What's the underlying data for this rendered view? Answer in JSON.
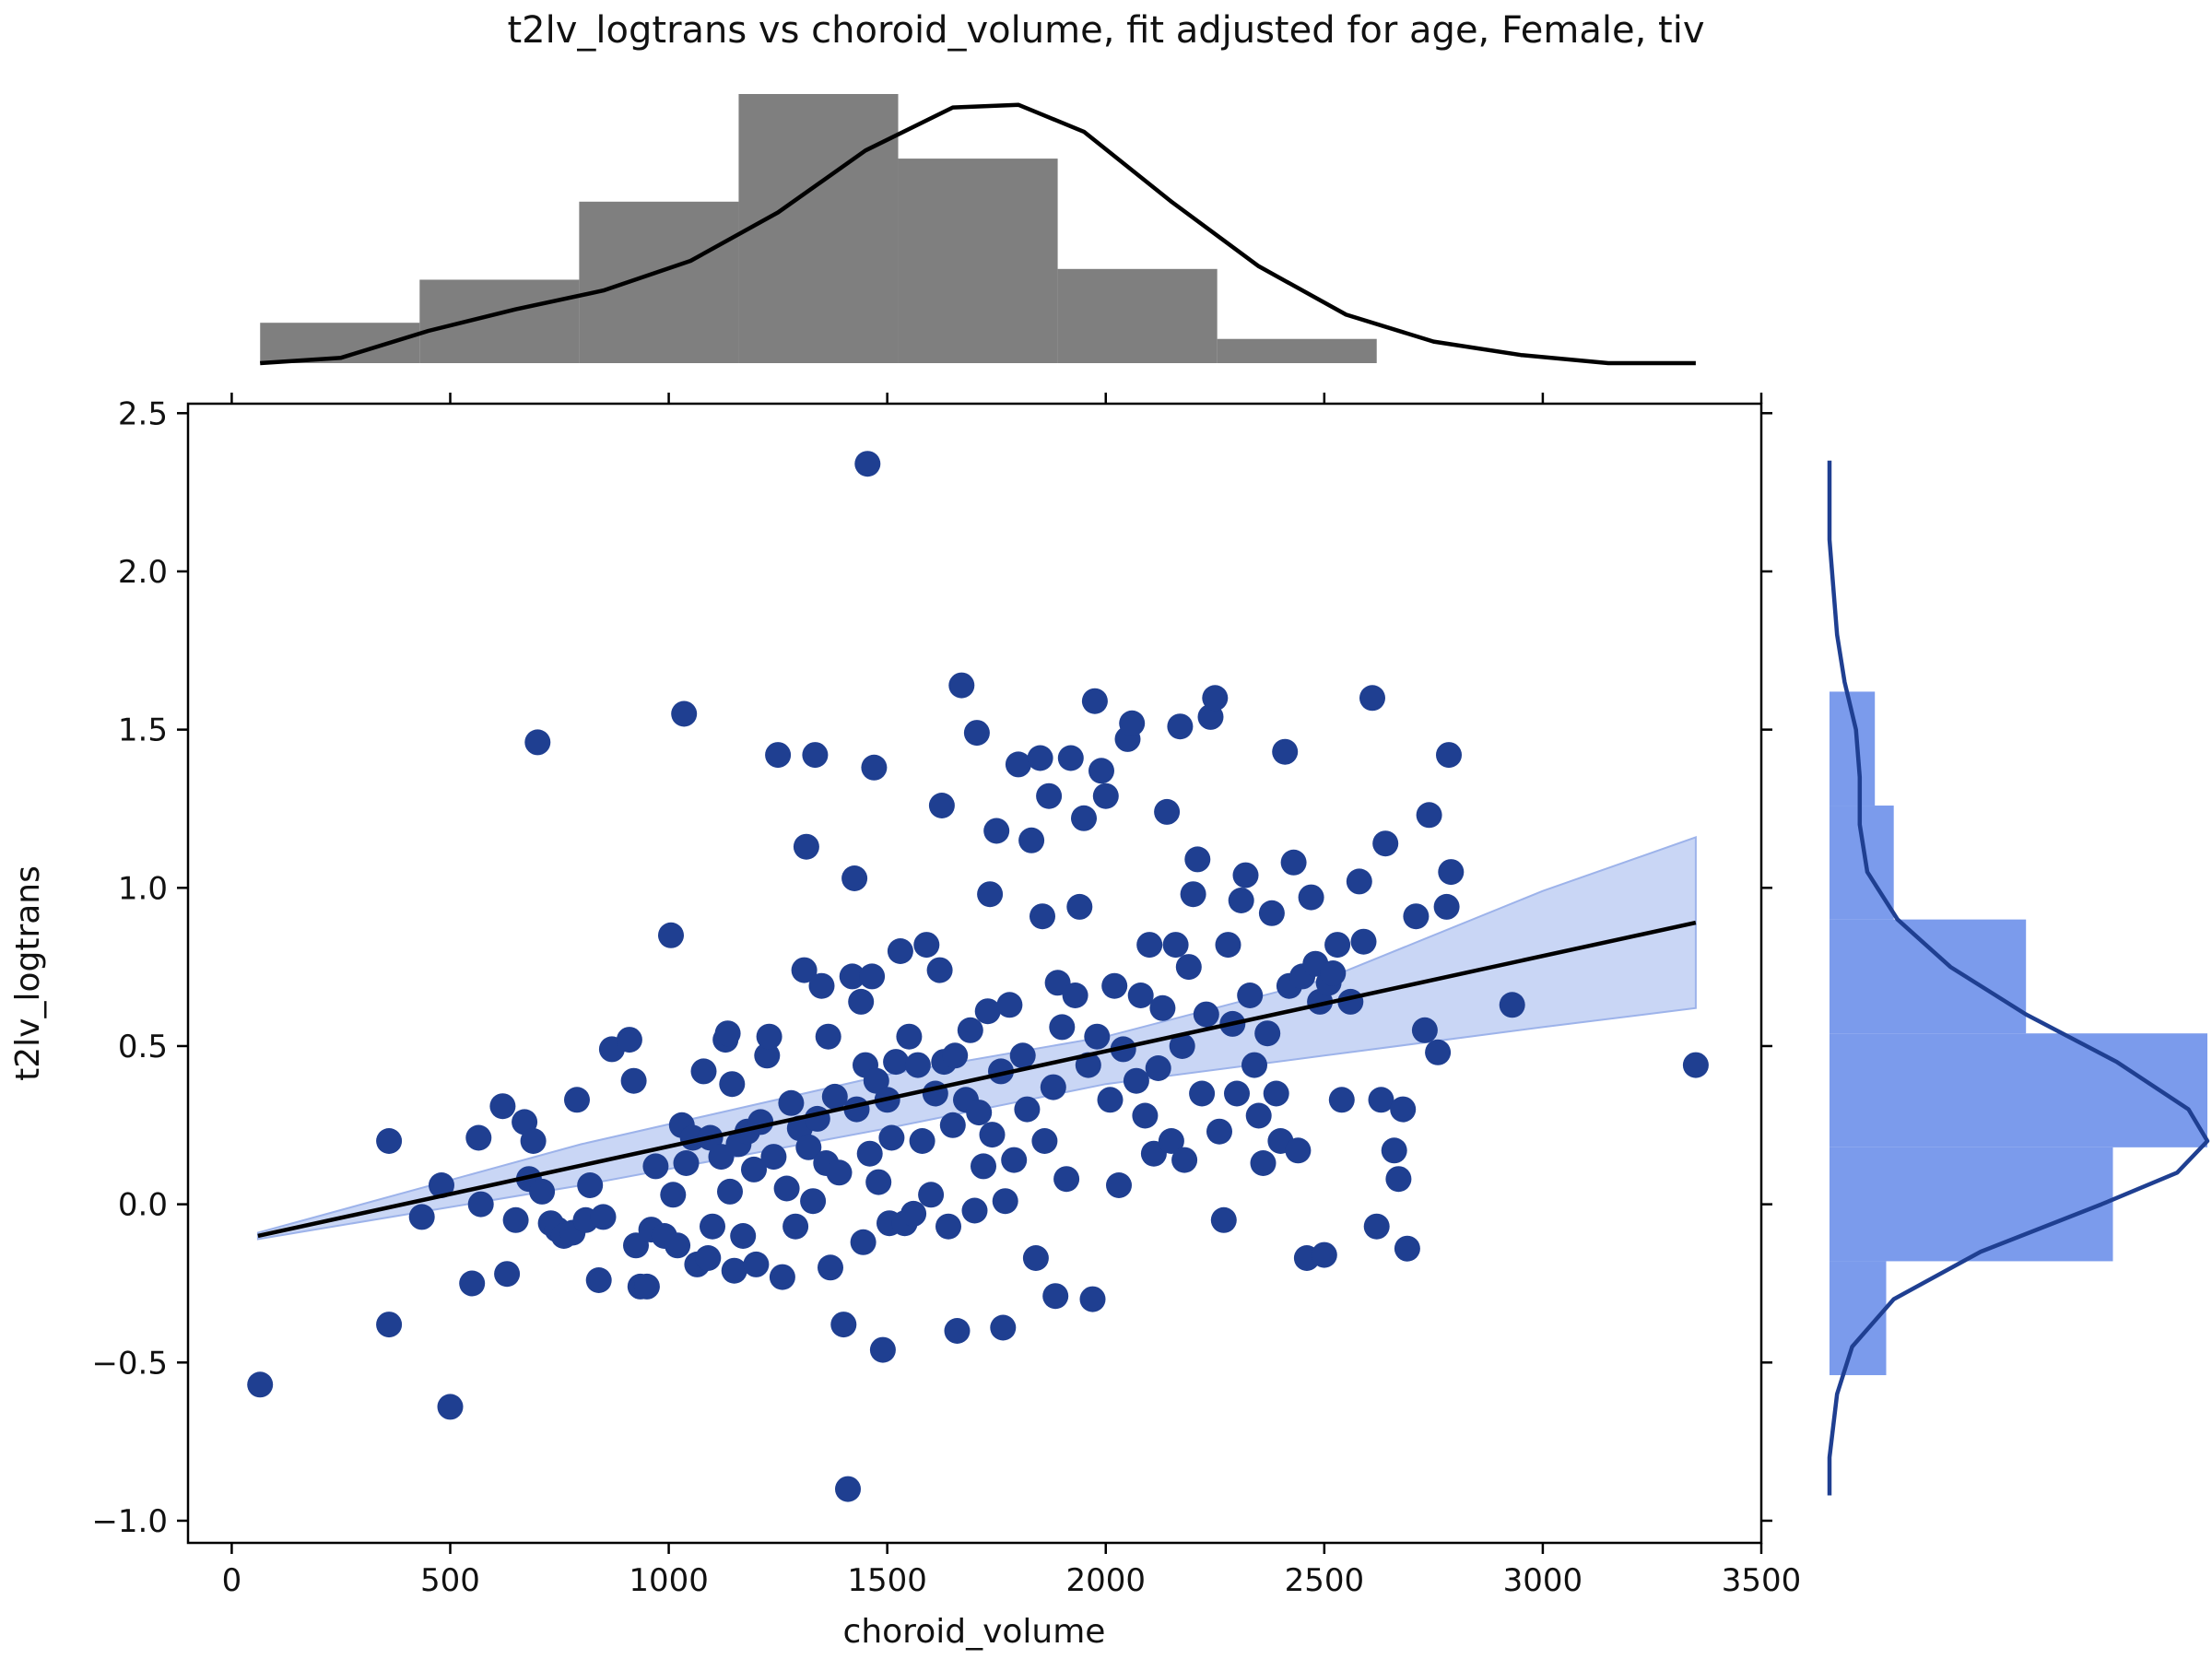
{
  "chart_data": {
    "type": "scatter",
    "title": "t2lv_logtrans vs choroid_volume, fit adjusted for age, Female, tiv",
    "xlabel": "choroid_volume",
    "ylabel": "t2lv_logtrans",
    "xlim": [
      -100,
      3500
    ],
    "ylim": [
      -1.07,
      2.53
    ],
    "xticks": [
      0,
      500,
      1000,
      1500,
      2000,
      2500,
      3000,
      3500
    ],
    "yticks": [
      -1.0,
      -0.5,
      0.0,
      0.5,
      1.0,
      1.5,
      2.0,
      2.5
    ],
    "xtick_labels": [
      "0",
      "500",
      "1000",
      "1500",
      "2000",
      "2500",
      "3000",
      "3500"
    ],
    "ytick_labels": [
      "−1.0",
      "−0.5",
      "0.0",
      "0.5",
      "1.0",
      "1.5",
      "2.0",
      "2.5"
    ],
    "grid": false,
    "colors": {
      "points": "#1f3f91",
      "fit_line": "#000000",
      "ci_band": "#c9d6f5",
      "ci_edge": "#9db3ea",
      "top_hist": "#7f7f7f",
      "top_kde": "#000000",
      "right_hist": "#7b9bec",
      "right_kde": "#1f3f91"
    },
    "fit_line": {
      "x": [
        60,
        3350
      ],
      "y": [
        -0.1,
        0.89
      ]
    },
    "ci_band": {
      "x": [
        60,
        800,
        1500,
        2000,
        2500,
        3000,
        3350
      ],
      "lower": [
        -0.11,
        0.06,
        0.24,
        0.38,
        0.47,
        0.56,
        0.62
      ],
      "upper": [
        -0.09,
        0.19,
        0.41,
        0.53,
        0.71,
        0.99,
        1.16
      ]
    },
    "points": [
      [
        65,
        -0.57
      ],
      [
        360,
        0.2
      ],
      [
        360,
        -0.38
      ],
      [
        435,
        -0.04
      ],
      [
        480,
        0.06
      ],
      [
        500,
        -0.64
      ],
      [
        550,
        -0.25
      ],
      [
        565,
        0.21
      ],
      [
        570,
        0.0
      ],
      [
        620,
        0.31
      ],
      [
        630,
        -0.22
      ],
      [
        650,
        -0.05
      ],
      [
        670,
        0.26
      ],
      [
        680,
        0.08
      ],
      [
        690,
        0.2
      ],
      [
        700,
        1.46
      ],
      [
        710,
        0.04
      ],
      [
        730,
        -0.06
      ],
      [
        745,
        -0.08
      ],
      [
        760,
        -0.1
      ],
      [
        780,
        -0.09
      ],
      [
        790,
        0.33
      ],
      [
        810,
        -0.05
      ],
      [
        820,
        0.06
      ],
      [
        840,
        -0.24
      ],
      [
        850,
        -0.04
      ],
      [
        870,
        0.49
      ],
      [
        910,
        0.52
      ],
      [
        920,
        0.39
      ],
      [
        925,
        -0.13
      ],
      [
        935,
        -0.26
      ],
      [
        950,
        -0.26
      ],
      [
        960,
        -0.08
      ],
      [
        970,
        0.12
      ],
      [
        990,
        -0.1
      ],
      [
        1005,
        0.85
      ],
      [
        1010,
        0.03
      ],
      [
        1020,
        -0.13
      ],
      [
        1030,
        0.25
      ],
      [
        1035,
        1.55
      ],
      [
        1040,
        0.13
      ],
      [
        1055,
        0.21
      ],
      [
        1065,
        -0.19
      ],
      [
        1080,
        0.42
      ],
      [
        1090,
        -0.17
      ],
      [
        1095,
        0.21
      ],
      [
        1100,
        -0.07
      ],
      [
        1120,
        0.15
      ],
      [
        1130,
        0.52
      ],
      [
        1135,
        0.54
      ],
      [
        1140,
        0.04
      ],
      [
        1145,
        0.38
      ],
      [
        1150,
        -0.21
      ],
      [
        1160,
        0.19
      ],
      [
        1170,
        -0.1
      ],
      [
        1180,
        0.23
      ],
      [
        1195,
        0.11
      ],
      [
        1200,
        -0.19
      ],
      [
        1210,
        0.26
      ],
      [
        1225,
        0.47
      ],
      [
        1230,
        0.53
      ],
      [
        1240,
        0.15
      ],
      [
        1250,
        1.42
      ],
      [
        1260,
        -0.23
      ],
      [
        1270,
        0.05
      ],
      [
        1280,
        0.32
      ],
      [
        1290,
        -0.07
      ],
      [
        1300,
        0.24
      ],
      [
        1310,
        0.74
      ],
      [
        1315,
        1.13
      ],
      [
        1320,
        0.18
      ],
      [
        1330,
        0.01
      ],
      [
        1335,
        1.42
      ],
      [
        1340,
        0.27
      ],
      [
        1350,
        0.69
      ],
      [
        1360,
        0.13
      ],
      [
        1365,
        0.53
      ],
      [
        1370,
        -0.2
      ],
      [
        1380,
        0.34
      ],
      [
        1390,
        0.1
      ],
      [
        1400,
        -0.38
      ],
      [
        1410,
        -0.9
      ],
      [
        1420,
        0.72
      ],
      [
        1425,
        1.03
      ],
      [
        1430,
        0.3
      ],
      [
        1440,
        0.64
      ],
      [
        1445,
        -0.12
      ],
      [
        1450,
        0.44
      ],
      [
        1455,
        2.34
      ],
      [
        1460,
        0.16
      ],
      [
        1465,
        0.72
      ],
      [
        1470,
        1.38
      ],
      [
        1475,
        0.39
      ],
      [
        1480,
        0.07
      ],
      [
        1490,
        -0.46
      ],
      [
        1500,
        0.33
      ],
      [
        1505,
        -0.06
      ],
      [
        1510,
        0.21
      ],
      [
        1520,
        0.45
      ],
      [
        1530,
        0.8
      ],
      [
        1540,
        -0.06
      ],
      [
        1550,
        0.53
      ],
      [
        1560,
        -0.03
      ],
      [
        1570,
        0.44
      ],
      [
        1580,
        0.2
      ],
      [
        1590,
        0.82
      ],
      [
        1600,
        0.03
      ],
      [
        1610,
        0.35
      ],
      [
        1620,
        0.74
      ],
      [
        1625,
        1.26
      ],
      [
        1630,
        0.45
      ],
      [
        1640,
        -0.07
      ],
      [
        1650,
        0.25
      ],
      [
        1655,
        0.47
      ],
      [
        1660,
        -0.4
      ],
      [
        1670,
        1.64
      ],
      [
        1680,
        0.33
      ],
      [
        1690,
        0.55
      ],
      [
        1700,
        -0.02
      ],
      [
        1705,
        1.49
      ],
      [
        1710,
        0.29
      ],
      [
        1720,
        0.12
      ],
      [
        1730,
        0.61
      ],
      [
        1735,
        0.98
      ],
      [
        1740,
        0.22
      ],
      [
        1750,
        1.18
      ],
      [
        1760,
        0.42
      ],
      [
        1765,
        -0.39
      ],
      [
        1770,
        0.01
      ],
      [
        1780,
        0.63
      ],
      [
        1790,
        0.14
      ],
      [
        1800,
        1.39
      ],
      [
        1810,
        0.47
      ],
      [
        1820,
        0.3
      ],
      [
        1830,
        1.15
      ],
      [
        1840,
        -0.17
      ],
      [
        1850,
        1.41
      ],
      [
        1855,
        0.91
      ],
      [
        1860,
        0.2
      ],
      [
        1870,
        1.29
      ],
      [
        1880,
        0.37
      ],
      [
        1885,
        -0.29
      ],
      [
        1890,
        0.7
      ],
      [
        1900,
        0.56
      ],
      [
        1910,
        0.08
      ],
      [
        1920,
        1.41
      ],
      [
        1930,
        0.66
      ],
      [
        1940,
        0.94
      ],
      [
        1950,
        1.22
      ],
      [
        1960,
        0.44
      ],
      [
        1970,
        -0.3
      ],
      [
        1975,
        1.59
      ],
      [
        1980,
        0.53
      ],
      [
        1990,
        1.37
      ],
      [
        2000,
        1.29
      ],
      [
        2010,
        0.33
      ],
      [
        2020,
        0.69
      ],
      [
        2030,
        0.06
      ],
      [
        2040,
        0.49
      ],
      [
        2050,
        1.47
      ],
      [
        2060,
        1.52
      ],
      [
        2070,
        0.39
      ],
      [
        2080,
        0.66
      ],
      [
        2090,
        0.28
      ],
      [
        2100,
        0.82
      ],
      [
        2110,
        0.16
      ],
      [
        2120,
        0.43
      ],
      [
        2130,
        0.62
      ],
      [
        2140,
        1.24
      ],
      [
        2150,
        0.2
      ],
      [
        2160,
        0.82
      ],
      [
        2170,
        1.51
      ],
      [
        2175,
        0.5
      ],
      [
        2180,
        0.14
      ],
      [
        2190,
        0.75
      ],
      [
        2200,
        0.98
      ],
      [
        2210,
        1.09
      ],
      [
        2220,
        0.35
      ],
      [
        2230,
        0.6
      ],
      [
        2240,
        1.54
      ],
      [
        2250,
        1.6
      ],
      [
        2260,
        0.23
      ],
      [
        2270,
        -0.05
      ],
      [
        2280,
        0.82
      ],
      [
        2290,
        0.57
      ],
      [
        2300,
        0.35
      ],
      [
        2310,
        0.96
      ],
      [
        2320,
        1.04
      ],
      [
        2330,
        0.66
      ],
      [
        2340,
        0.44
      ],
      [
        2350,
        0.28
      ],
      [
        2360,
        0.13
      ],
      [
        2370,
        0.54
      ],
      [
        2380,
        0.92
      ],
      [
        2390,
        0.35
      ],
      [
        2400,
        0.2
      ],
      [
        2410,
        1.43
      ],
      [
        2420,
        0.69
      ],
      [
        2430,
        1.08
      ],
      [
        2440,
        0.17
      ],
      [
        2450,
        0.72
      ],
      [
        2460,
        -0.17
      ],
      [
        2470,
        0.97
      ],
      [
        2480,
        0.76
      ],
      [
        2490,
        0.64
      ],
      [
        2500,
        -0.16
      ],
      [
        2510,
        0.7
      ],
      [
        2520,
        0.73
      ],
      [
        2530,
        0.82
      ],
      [
        2540,
        0.33
      ],
      [
        2560,
        0.64
      ],
      [
        2580,
        1.02
      ],
      [
        2590,
        0.83
      ],
      [
        2610,
        1.6
      ],
      [
        2620,
        -0.07
      ],
      [
        2630,
        0.33
      ],
      [
        2640,
        1.14
      ],
      [
        2660,
        0.17
      ],
      [
        2670,
        0.08
      ],
      [
        2680,
        0.3
      ],
      [
        2690,
        -0.14
      ],
      [
        2710,
        0.91
      ],
      [
        2730,
        0.55
      ],
      [
        2740,
        1.23
      ],
      [
        2760,
        0.48
      ],
      [
        2780,
        0.94
      ],
      [
        2785,
        1.42
      ],
      [
        2790,
        1.05
      ],
      [
        2930,
        0.63
      ],
      [
        3350,
        0.44
      ]
    ],
    "top_histogram": {
      "bin_edges": [
        65,
        430,
        795,
        1160,
        1525,
        1890,
        2255,
        2620,
        2985
      ],
      "heights": [
        0.15,
        0.31,
        0.6,
        1.0,
        0.76,
        0.35,
        0.09,
        0.0
      ]
    },
    "top_kde": {
      "x": [
        65,
        250,
        450,
        650,
        850,
        1050,
        1250,
        1450,
        1650,
        1800,
        1950,
        2150,
        2350,
        2550,
        2750,
        2950,
        3150,
        3350
      ],
      "y": [
        0.0,
        0.02,
        0.12,
        0.2,
        0.27,
        0.38,
        0.56,
        0.79,
        0.95,
        0.96,
        0.86,
        0.6,
        0.36,
        0.18,
        0.08,
        0.03,
        0.0,
        0.0
      ]
    },
    "right_histogram": {
      "bin_edges": [
        -0.54,
        -0.18,
        0.18,
        0.54,
        0.9,
        1.26,
        1.62
      ],
      "widths": [
        0.15,
        0.75,
        1.0,
        0.52,
        0.17,
        0.12
      ]
    },
    "right_kde": {
      "y": [
        -0.92,
        -0.8,
        -0.6,
        -0.45,
        -0.3,
        -0.15,
        0.0,
        0.1,
        0.2,
        0.3,
        0.45,
        0.6,
        0.75,
        0.9,
        1.05,
        1.2,
        1.35,
        1.5,
        1.65,
        1.8,
        1.95,
        2.1,
        2.35
      ],
      "x": [
        0.0,
        0.0,
        0.02,
        0.06,
        0.17,
        0.4,
        0.72,
        0.92,
        1.0,
        0.95,
        0.76,
        0.52,
        0.32,
        0.18,
        0.1,
        0.08,
        0.08,
        0.07,
        0.04,
        0.02,
        0.01,
        0.0,
        0.0
      ]
    }
  }
}
